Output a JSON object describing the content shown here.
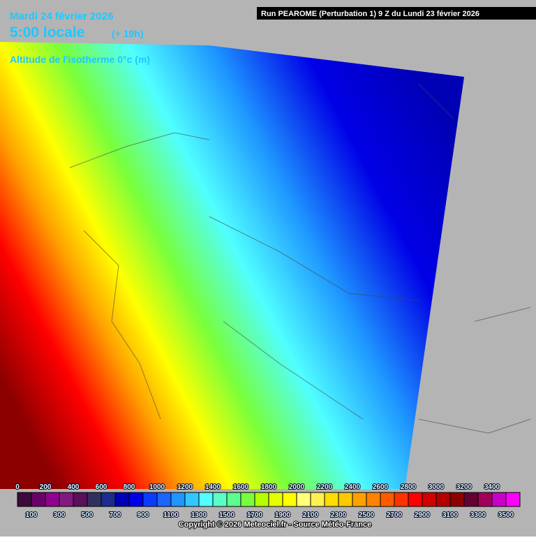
{
  "header": {
    "date": "Mardi 24 février 2026",
    "time": "5:00 locale",
    "lead": "(+ 19h)",
    "parameter": "Altitude de l'isotherme 0°c (m)",
    "run": "Run PEAROME (Perturbation 1) 9 Z du Lundi 23 février 2026"
  },
  "legend": {
    "levels": [
      0,
      100,
      200,
      300,
      400,
      500,
      600,
      700,
      800,
      900,
      1000,
      1100,
      1200,
      1300,
      1400,
      1500,
      1600,
      1700,
      1800,
      1900,
      2000,
      2100,
      2200,
      2300,
      2400,
      2500,
      2600,
      2700,
      2800,
      2900,
      3000,
      3100,
      3200,
      3300,
      3400,
      3500
    ],
    "colors": [
      "#3c0a3c",
      "#6a006a",
      "#900090",
      "#801a80",
      "#5a105a",
      "#303060",
      "#1c2c8c",
      "#0000b4",
      "#0000e6",
      "#0a3cff",
      "#1e64ff",
      "#1e96ff",
      "#32c8ff",
      "#50ffff",
      "#5affc8",
      "#5aff8c",
      "#78ff3c",
      "#b4ff00",
      "#e6ff00",
      "#ffff00",
      "#ffff78",
      "#fff050",
      "#ffdc00",
      "#ffc800",
      "#ffa000",
      "#ff8200",
      "#ff5a00",
      "#ff3200",
      "#ff0000",
      "#d20000",
      "#b40000",
      "#8c0000",
      "#640032",
      "#a0005a",
      "#c800c8",
      "#ff00ff"
    ]
  },
  "footer": {
    "copyright": "Copyright © 2026 Meteociel.fr - Source Météo-France"
  }
}
